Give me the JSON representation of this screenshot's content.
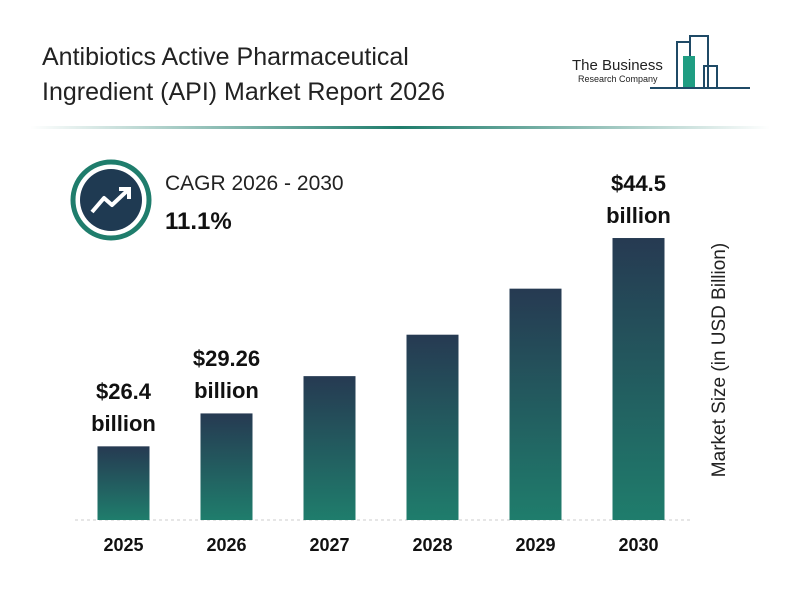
{
  "chart_data": {
    "type": "bar",
    "title": "Antibiotics Active Pharmaceutical Ingredient (API) Market Report 2026",
    "brand": [
      "The Business",
      "Research Company"
    ],
    "cagr_label": "CAGR 2026 - 2030",
    "cagr_value": "11.1%",
    "y_label": "Market Size (in USD Billion)",
    "categories": [
      "2025",
      "2026",
      "2027",
      "2028",
      "2029",
      "2030"
    ],
    "values": [
      26.4,
      29.26,
      32.5,
      36.1,
      40.1,
      44.5
    ],
    "value_labels": [
      "$26.4 billion",
      "$29.26 billion",
      null,
      null,
      null,
      "$44.5 billion"
    ],
    "ylim": [
      20,
      46.5
    ],
    "color": [
      "#263a52",
      "#1f7d6c"
    ]
  }
}
